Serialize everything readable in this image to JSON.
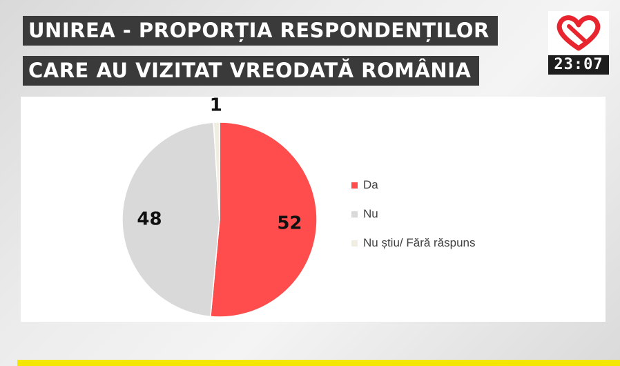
{
  "header": {
    "title_line1": "UNIREA - PROPORȚIA RESPONDENȚILOR",
    "title_line2": "CARE AU VIZITAT VREODATĂ ROMÂNIA"
  },
  "channel": {
    "logo_icon": "heart-logo-icon",
    "clock": "23:07",
    "logo_color": "#e8242f"
  },
  "chart_data": {
    "type": "pie",
    "title": "UNIREA - PROPORȚIA RESPONDENȚILOR CARE AU VIZITAT VREODATĂ ROMÂNIA",
    "slices": [
      {
        "label": "Da",
        "value": 52,
        "color": "#ff4d4d"
      },
      {
        "label": "Nu",
        "value": 48,
        "color": "#d9d9d9"
      },
      {
        "label": "Nu știu/ Fără răspuns",
        "value": 1,
        "color": "#efeee0"
      }
    ],
    "legend_position": "right"
  }
}
